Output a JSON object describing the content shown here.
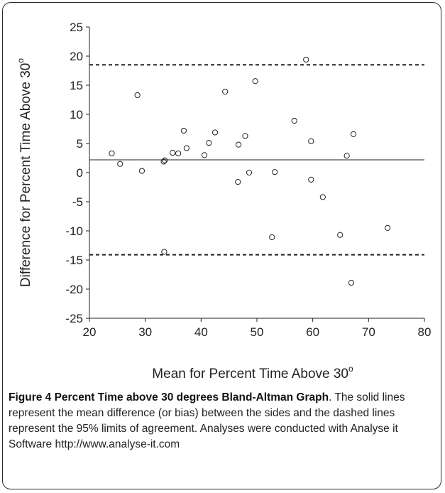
{
  "chart_data": {
    "type": "scatter",
    "xlabel": "Mean for Percent Time Above 30",
    "xlabel_sup": "o",
    "ylabel": "Difference for Percent Time Above 30",
    "ylabel_sup": "o",
    "xlim": [
      20,
      80
    ],
    "ylim": [
      -25,
      25
    ],
    "xticks": [
      20,
      30,
      40,
      50,
      60,
      70,
      80
    ],
    "yticks": [
      25,
      20,
      15,
      10,
      5,
      0,
      -5,
      -10,
      -15,
      -20,
      -25
    ],
    "grid": false,
    "mean_line": 2.2,
    "limit_lines": [
      18.5,
      -14.1
    ],
    "points": [
      {
        "x": 24.0,
        "y": 3.3
      },
      {
        "x": 25.5,
        "y": 1.5
      },
      {
        "x": 28.6,
        "y": 13.3
      },
      {
        "x": 29.4,
        "y": 0.3
      },
      {
        "x": 33.3,
        "y": 1.9
      },
      {
        "x": 33.5,
        "y": 2.1
      },
      {
        "x": 33.4,
        "y": -13.6
      },
      {
        "x": 34.9,
        "y": 3.4
      },
      {
        "x": 35.9,
        "y": 3.3
      },
      {
        "x": 36.9,
        "y": 7.2
      },
      {
        "x": 37.4,
        "y": 4.2
      },
      {
        "x": 40.6,
        "y": 3.0
      },
      {
        "x": 41.4,
        "y": 5.1
      },
      {
        "x": 42.5,
        "y": 6.9
      },
      {
        "x": 44.3,
        "y": 13.9
      },
      {
        "x": 46.7,
        "y": 4.8
      },
      {
        "x": 46.6,
        "y": -1.6
      },
      {
        "x": 47.9,
        "y": 6.3
      },
      {
        "x": 48.6,
        "y": 0.0
      },
      {
        "x": 49.7,
        "y": 15.7
      },
      {
        "x": 52.7,
        "y": -11.1
      },
      {
        "x": 53.2,
        "y": 0.1
      },
      {
        "x": 56.7,
        "y": 8.9
      },
      {
        "x": 58.8,
        "y": 19.4
      },
      {
        "x": 59.7,
        "y": 5.4
      },
      {
        "x": 59.7,
        "y": -1.2
      },
      {
        "x": 61.8,
        "y": -4.2
      },
      {
        "x": 64.9,
        "y": -10.7
      },
      {
        "x": 66.1,
        "y": 2.9
      },
      {
        "x": 67.3,
        "y": 6.6
      },
      {
        "x": 66.9,
        "y": -18.9
      },
      {
        "x": 73.4,
        "y": -9.5
      }
    ]
  },
  "caption": {
    "title": "Figure 4 Percent Time above 30 degrees Bland-Altman Graph",
    "text": ". The solid lines represent the mean difference (or bias) between the sides and the dashed lines represent the 95% limits of agreement. Analyses were conducted with Analyse it Software http://www.analyse-it.com"
  }
}
